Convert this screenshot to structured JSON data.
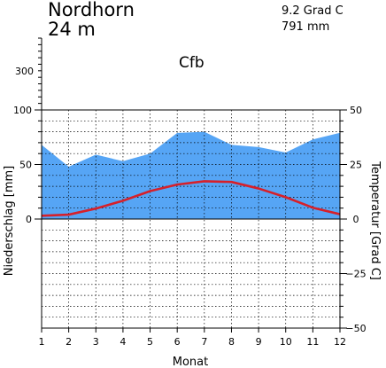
{
  "header": {
    "station": "Nordhorn",
    "elevation": "24 m",
    "annual_temperature": "9.2 Grad C",
    "annual_precipitation": "791 mm",
    "climate_class": "Cfb"
  },
  "chart_data": {
    "type": "area",
    "title": "",
    "xlabel": "Monat",
    "ylabel_left": "Niederschlag [mm]",
    "ylabel_right": "Temperatur [Grad C]",
    "categories": [
      "1",
      "2",
      "3",
      "4",
      "5",
      "6",
      "7",
      "8",
      "9",
      "10",
      "11",
      "12"
    ],
    "series": [
      {
        "kind": "area",
        "axis": "precipitation",
        "values": [
          68,
          48,
          59,
          53,
          60,
          79,
          80,
          68,
          66,
          61,
          73,
          79
        ],
        "color": "#56a5f5"
      },
      {
        "kind": "line",
        "axis": "temperature",
        "values": [
          1.5,
          2.0,
          4.8,
          8.4,
          12.8,
          15.8,
          17.3,
          17.0,
          14.0,
          10.0,
          5.2,
          2.2
        ],
        "color": "#d6202a"
      }
    ],
    "precipitation_axis": {
      "range": [
        0,
        100
      ],
      "labeled_ticks": [
        0,
        50,
        100
      ],
      "scale_change_label": "300",
      "upper_minor_tick_count": 11
    },
    "temperature_axis": {
      "range": [
        -50,
        50
      ],
      "labeled_ticks": [
        -50,
        -25,
        0,
        25,
        50
      ],
      "tick_labels": [
        "−50",
        "−25",
        "0",
        "25",
        "50"
      ]
    },
    "grid": true
  }
}
